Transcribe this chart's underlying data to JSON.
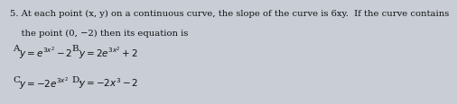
{
  "question_number": "5.",
  "question_text": " At each point (x, y) on a continuous curve, the slope of the curve is 6xy.  If the curve contains",
  "question_text2": "    the point (0, −2) then its equation is",
  "bg_color": "#c8cdd6",
  "text_color": "#111111",
  "options": [
    {
      "label": "A.",
      "math": "$y = e^{3x^2} - 2$",
      "col": 0.03,
      "row": 0.58
    },
    {
      "label": "B.",
      "math": "$y = 2e^{3x^2} + 2$",
      "col": 0.52,
      "row": 0.58
    },
    {
      "label": "C.",
      "math": "$y = -2e^{3x^2}$",
      "col": 0.03,
      "row": 0.22
    },
    {
      "label": "D.",
      "math": "$y = -2x^3 - 2$",
      "col": 0.52,
      "row": 0.22
    }
  ],
  "font_size_question": 7.2,
  "font_size_options": 7.5
}
